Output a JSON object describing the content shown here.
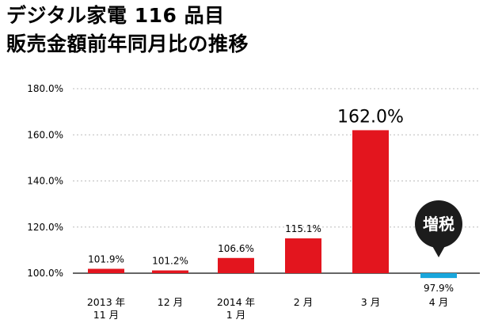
{
  "title": {
    "line1": "デジタル家電 116 品目",
    "line2": "販売金額前年同月比の推移"
  },
  "chart_data": {
    "type": "bar",
    "title": "デジタル家電 116 品目 販売金額前年同月比の推移",
    "xlabel": "",
    "ylabel": "",
    "ylim": [
      100,
      180
    ],
    "yticks": [
      100,
      120,
      140,
      160,
      180
    ],
    "ytick_labels": [
      "100.0%",
      "120.0%",
      "140.0%",
      "160.0%",
      "180.0%"
    ],
    "grid": true,
    "categories": [
      [
        "2013 年",
        "11 月"
      ],
      [
        "12 月"
      ],
      [
        "2014 年",
        "1 月"
      ],
      [
        "2 月"
      ],
      [
        "3 月"
      ],
      [
        "4 月"
      ]
    ],
    "values": [
      101.9,
      101.2,
      106.6,
      115.1,
      162.0,
      97.9
    ],
    "data_labels": [
      "101.9%",
      "101.2%",
      "106.6%",
      "115.1%",
      "162.0%",
      "97.9%"
    ],
    "colors": [
      "#e3151e",
      "#e3151e",
      "#e3151e",
      "#e3151e",
      "#e3151e",
      "#19a6dc"
    ],
    "annotation": {
      "text": "増税",
      "category_index": 5,
      "bubble_color": "#1c1c1c",
      "text_color": "#ffffff"
    }
  }
}
